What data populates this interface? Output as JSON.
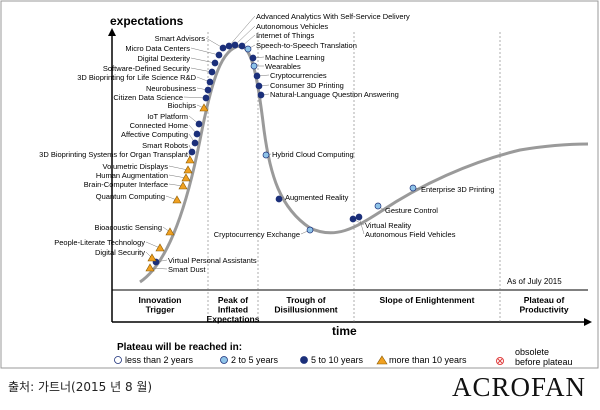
{
  "chart_data": {
    "type": "scatter",
    "title": "",
    "ylabel": "expectations",
    "xlabel": "time",
    "as_of": "As of July 2015",
    "phases": [
      [
        "Innovation",
        "Trigger"
      ],
      [
        "Peak of",
        "Inflated",
        "Expectations"
      ],
      [
        "Trough of",
        "Disillusionment"
      ],
      [
        "Slope of Enlightenment"
      ],
      [
        "Plateau of",
        "Productivity"
      ]
    ],
    "legend": {
      "title": "Plateau will be reached in:",
      "items": [
        {
          "key": "lt2",
          "label": "less than 2 years",
          "color": "#ffffff"
        },
        {
          "key": "2to5",
          "label": "2 to 5 years",
          "color": "#8ec3e8"
        },
        {
          "key": "5to10",
          "label": "5 to 10 years",
          "color": "#1b2f7a"
        },
        {
          "key": "gt10",
          "label": "more than 10 years",
          "color": "#f0a020"
        },
        {
          "key": "obsolete",
          "label": "obsolete before plateau",
          "lines": [
            "obsolete",
            "before plateau"
          ],
          "color": "#e04040"
        }
      ]
    },
    "technologies": [
      {
        "name": "Smart Dust",
        "cls": "gt10"
      },
      {
        "name": "Virtual Personal Assistants",
        "cls": "5to10"
      },
      {
        "name": "Digital Security",
        "cls": "gt10"
      },
      {
        "name": "People-Literate Technology",
        "cls": "gt10"
      },
      {
        "name": "Bioacoustic Sensing",
        "cls": "gt10"
      },
      {
        "name": "Quantum Computing",
        "cls": "gt10"
      },
      {
        "name": "Brain-Computer Interface",
        "cls": "gt10"
      },
      {
        "name": "Human Augmentation",
        "cls": "gt10"
      },
      {
        "name": "Volumetric Displays",
        "cls": "gt10"
      },
      {
        "name": "3D Bioprinting Systems for Organ Transplant",
        "cls": "gt10"
      },
      {
        "name": "Smart Robots",
        "cls": "5to10"
      },
      {
        "name": "Affective Computing",
        "cls": "5to10"
      },
      {
        "name": "Connected Home",
        "cls": "5to10"
      },
      {
        "name": "IoT Platform",
        "cls": "5to10"
      },
      {
        "name": "Biochips",
        "cls": "gt10"
      },
      {
        "name": "Citizen Data Science",
        "cls": "5to10"
      },
      {
        "name": "Neurobusiness",
        "cls": "5to10"
      },
      {
        "name": "3D Bioprinting for Life Science R&D",
        "cls": "5to10"
      },
      {
        "name": "Software-Defined Security",
        "cls": "5to10"
      },
      {
        "name": "Digital Dexterity",
        "cls": "5to10"
      },
      {
        "name": "Micro Data Centers",
        "cls": "5to10"
      },
      {
        "name": "Smart Advisors",
        "cls": "5to10"
      },
      {
        "name": "Advanced Analytics With Self-Service Delivery",
        "cls": "5to10"
      },
      {
        "name": "Autonomous Vehicles",
        "cls": "5to10"
      },
      {
        "name": "Internet of Things",
        "cls": "5to10"
      },
      {
        "name": "Speech-to-Speech Translation",
        "cls": "2to5"
      },
      {
        "name": "Machine Learning",
        "cls": "5to10"
      },
      {
        "name": "Wearables",
        "cls": "2to5"
      },
      {
        "name": "Cryptocurrencies",
        "cls": "5to10"
      },
      {
        "name": "Consumer 3D Printing",
        "cls": "5to10"
      },
      {
        "name": "Natural-Language Question Answering",
        "cls": "5to10"
      },
      {
        "name": "Hybrid Cloud Computing",
        "cls": "2to5"
      },
      {
        "name": "Augmented Reality",
        "cls": "5to10"
      },
      {
        "name": "Cryptocurrency Exchange",
        "cls": "2to5"
      },
      {
        "name": "Virtual Reality",
        "cls": "5to10"
      },
      {
        "name": "Autonomous Field Vehicles",
        "cls": "5to10"
      },
      {
        "name": "Gesture Control",
        "cls": "2to5"
      },
      {
        "name": "Enterprise 3D Printing",
        "cls": "2to5"
      }
    ]
  },
  "credit": "출처: 가트너(2015 년 8 월)",
  "logo": "ACROFAN"
}
